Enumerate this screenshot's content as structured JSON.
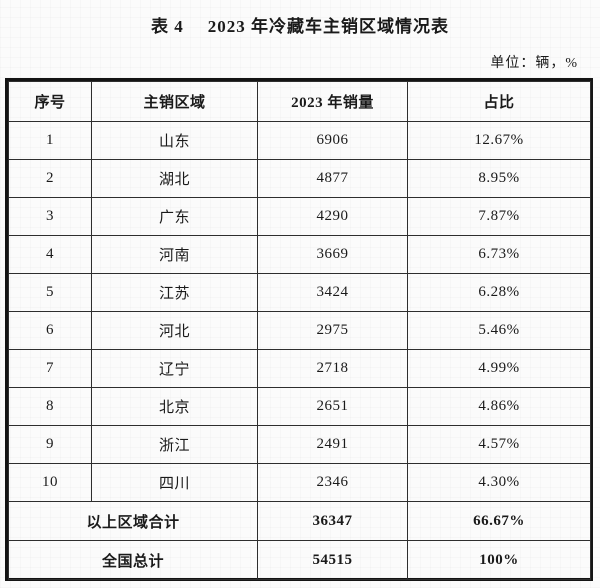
{
  "page": {
    "title_label": "表 4",
    "title_text": "2023 年冷藏车主销区域情况表",
    "unit_note": "单位：辆，%"
  },
  "table": {
    "columns": [
      "序号",
      "主销区域",
      "2023 年销量",
      "占比"
    ],
    "rows": [
      {
        "no": "1",
        "region": "山东",
        "sales": "6906",
        "share": "12.67%"
      },
      {
        "no": "2",
        "region": "湖北",
        "sales": "4877",
        "share": "8.95%"
      },
      {
        "no": "3",
        "region": "广东",
        "sales": "4290",
        "share": "7.87%"
      },
      {
        "no": "4",
        "region": "河南",
        "sales": "3669",
        "share": "6.73%"
      },
      {
        "no": "5",
        "region": "江苏",
        "sales": "3424",
        "share": "6.28%"
      },
      {
        "no": "6",
        "region": "河北",
        "sales": "2975",
        "share": "5.46%"
      },
      {
        "no": "7",
        "region": "辽宁",
        "sales": "2718",
        "share": "4.99%"
      },
      {
        "no": "8",
        "region": "北京",
        "sales": "2651",
        "share": "4.86%"
      },
      {
        "no": "9",
        "region": "浙江",
        "sales": "2491",
        "share": "4.57%"
      },
      {
        "no": "10",
        "region": "四川",
        "sales": "2346",
        "share": "4.30%"
      }
    ],
    "totals": [
      {
        "label": "以上区域合计",
        "sales": "36347",
        "share": "66.67%"
      },
      {
        "label": "全国总计",
        "sales": "54515",
        "share": "100%"
      }
    ]
  },
  "colors": {
    "text": "#1a1a1a",
    "border_outer": "#141414",
    "border_inner": "#2e2e2e",
    "background": "#fbfbfb"
  }
}
